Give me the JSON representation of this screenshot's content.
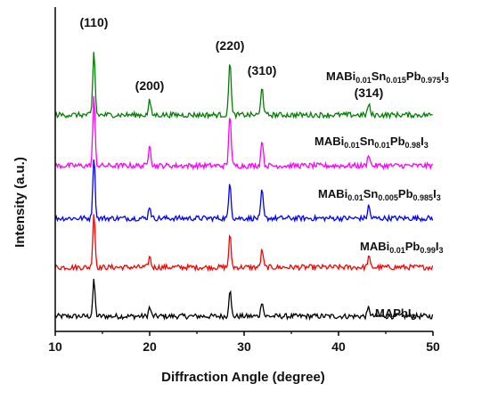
{
  "chart_data": {
    "type": "line",
    "xlabel": "Diffraction Angle (degree)",
    "ylabel": "Intensity (a.u.)",
    "xlim": [
      10,
      50
    ],
    "xticks": [
      10,
      20,
      30,
      40,
      50
    ],
    "grid": false,
    "legend": "labels placed beside each trace",
    "peak_labels": [
      {
        "text": "(110)",
        "x": 14.1
      },
      {
        "text": "(200)",
        "x": 20.0
      },
      {
        "text": "(220)",
        "x": 28.5
      },
      {
        "text": "(310)",
        "x": 31.9
      },
      {
        "text": "(314)",
        "x": 43.2
      }
    ],
    "peaks_2theta": [
      14.1,
      20.0,
      28.5,
      31.9,
      43.2
    ],
    "series": [
      {
        "name": "MAPbI3",
        "label_parts": [
          [
            "MAPbI",
            ""
          ],
          [
            "3",
            "sub"
          ]
        ],
        "color": "#000000",
        "peak_heights": [
          40,
          10,
          30,
          18,
          10
        ]
      },
      {
        "name": "MABi0.01Pb0.99I3",
        "label_parts": [
          [
            "MABi",
            ""
          ],
          [
            "0.01",
            "sub"
          ],
          [
            "Pb",
            ""
          ],
          [
            "0.99",
            "sub"
          ],
          [
            "I",
            ""
          ],
          [
            "3",
            "sub"
          ]
        ],
        "color": "#ff0000",
        "peak_heights": [
          62,
          12,
          36,
          20,
          12
        ]
      },
      {
        "name": "MABi0.01Sn0.005Pb0.985I3",
        "label_parts": [
          [
            "MABi",
            ""
          ],
          [
            "0.01",
            "sub"
          ],
          [
            "Sn",
            ""
          ],
          [
            "0.005",
            "sub"
          ],
          [
            "Pb",
            ""
          ],
          [
            "0.985",
            "sub"
          ],
          [
            "I",
            ""
          ],
          [
            "3",
            "sub"
          ]
        ],
        "color": "#0000ff",
        "peak_heights": [
          70,
          14,
          42,
          32,
          14
        ]
      },
      {
        "name": "MABi0.01Sn0.01Pb0.98I3",
        "label_parts": [
          [
            "MABi",
            ""
          ],
          [
            "0.01",
            "sub"
          ],
          [
            "Sn",
            ""
          ],
          [
            "0.01",
            "sub"
          ],
          [
            "Pb",
            ""
          ],
          [
            "0.98",
            "sub"
          ],
          [
            "I",
            ""
          ],
          [
            "3",
            "sub"
          ]
        ],
        "color": "#ff00ff",
        "peak_heights": [
          78,
          26,
          60,
          30,
          14
        ]
      },
      {
        "name": "MABi0.01Sn0.015Pb0.975I3",
        "label_parts": [
          [
            "MABi",
            ""
          ],
          [
            "0.01",
            "sub"
          ],
          [
            "Sn",
            ""
          ],
          [
            "0.015",
            "sub"
          ],
          [
            "Pb",
            ""
          ],
          [
            "0.975",
            "sub"
          ],
          [
            "I",
            ""
          ],
          [
            "3",
            "sub"
          ]
        ],
        "color": "#008000",
        "peak_heights": [
          72,
          16,
          64,
          34,
          12
        ]
      }
    ]
  }
}
